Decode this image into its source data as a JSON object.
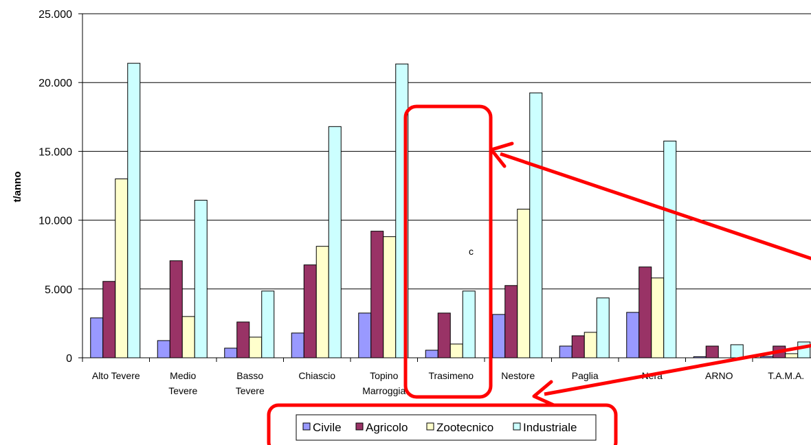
{
  "chart_data": {
    "type": "bar",
    "ylabel": "t/anno",
    "ylim": [
      0,
      25000
    ],
    "yticks": [
      "0",
      "5.000",
      "10.000",
      "15.000",
      "20.000",
      "25.000"
    ],
    "ytick_values": [
      0,
      5000,
      10000,
      15000,
      20000,
      25000
    ],
    "grid": true,
    "legend_position": "bottom",
    "categories": [
      [
        "Alto Tevere"
      ],
      [
        "Medio",
        "Tevere"
      ],
      [
        "Basso",
        "Tevere"
      ],
      [
        "Chiascio"
      ],
      [
        "Topino",
        "Marroggia"
      ],
      [
        "Trasimeno"
      ],
      [
        "Nestore"
      ],
      [
        "Paglia"
      ],
      [
        "Nera"
      ],
      [
        "ARNO"
      ],
      [
        "T.A.M.A."
      ]
    ],
    "series": [
      {
        "name": "Civile",
        "color": "#9999FF",
        "values": [
          2900,
          1250,
          700,
          1800,
          3250,
          550,
          3150,
          850,
          3300,
          80,
          100
        ]
      },
      {
        "name": "Agricolo",
        "color": "#993366",
        "values": [
          5550,
          7050,
          2600,
          6750,
          9200,
          3250,
          5250,
          1600,
          6600,
          850,
          850
        ]
      },
      {
        "name": "Zootecnico",
        "color": "#FFFFCC",
        "values": [
          13000,
          3000,
          1500,
          8100,
          8800,
          1000,
          10800,
          1850,
          5800,
          0,
          300
        ]
      },
      {
        "name": "Industriale",
        "color": "#CCFFFF",
        "values": [
          21400,
          11450,
          4850,
          16800,
          21350,
          4850,
          19250,
          4350,
          15750,
          950,
          1150
        ]
      }
    ]
  },
  "annotations": {
    "note_text": "c",
    "highlight_color": "#FF0000"
  }
}
